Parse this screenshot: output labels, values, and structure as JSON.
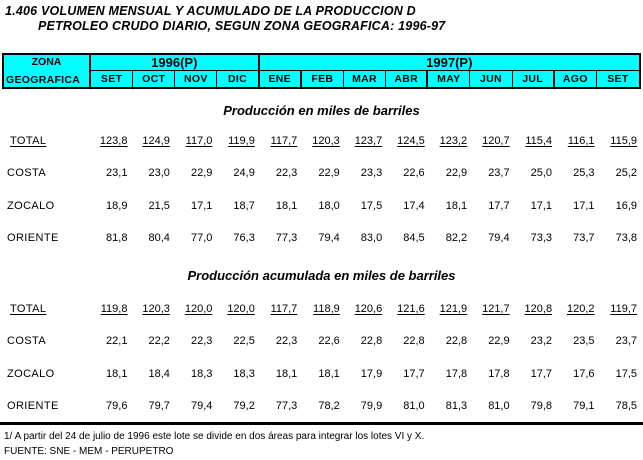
{
  "title": {
    "line1": "1.406 VOLUMEN MENSUAL Y ACUMULADO DE LA PRODUCCION D",
    "line2": "PETROLEO CRUDO DIARIO, SEGUN ZONA GEOGRAFICA: 1996-97"
  },
  "header": {
    "zone_line1": "ZONA",
    "zone_line2": "GEOGRAFICA",
    "year_1996": "1996(P)",
    "year_1997": "1997(P)",
    "months": [
      "SET",
      "OCT",
      "NOV",
      "DIC",
      "ENE",
      "FEB",
      "MAR",
      "ABR",
      "MAY",
      "JUN",
      "JUL",
      "AGO",
      "SET"
    ],
    "header_bg": "#00FFFF",
    "border_color": "#000000"
  },
  "sections": [
    {
      "title": "Producción en miles de barriles",
      "rows": [
        {
          "label": "TOTAL",
          "emphasis": true,
          "values": [
            "123,8",
            "124,9",
            "117,0",
            "119,9",
            "117,7",
            "120,3",
            "123,7",
            "124,5",
            "123,2",
            "120,7",
            "115,4",
            "116,1",
            "115,9"
          ]
        },
        {
          "label": "COSTA",
          "emphasis": false,
          "values": [
            "23,1",
            "23,0",
            "22,9",
            "24,9",
            "22,3",
            "22,9",
            "23,3",
            "22,6",
            "22,9",
            "23,7",
            "25,0",
            "25,3",
            "25,2"
          ]
        },
        {
          "label": "ZOCALO",
          "emphasis": false,
          "values": [
            "18,9",
            "21,5",
            "17,1",
            "18,7",
            "18,1",
            "18,0",
            "17,5",
            "17,4",
            "18,1",
            "17,7",
            "17,1",
            "17,1",
            "16,9"
          ]
        },
        {
          "label": "ORIENTE",
          "emphasis": false,
          "values": [
            "81,8",
            "80,4",
            "77,0",
            "76,3",
            "77,3",
            "79,4",
            "83,0",
            "84,5",
            "82,2",
            "79,4",
            "73,3",
            "73,7",
            "73,8"
          ]
        }
      ]
    },
    {
      "title": "Producción acumulada en miles de barriles",
      "rows": [
        {
          "label": "TOTAL",
          "emphasis": true,
          "values": [
            "119,8",
            "120,3",
            "120,0",
            "120,0",
            "117,7",
            "118,9",
            "120,6",
            "121,6",
            "121,9",
            "121,7",
            "120,8",
            "120,2",
            "119,7"
          ]
        },
        {
          "label": "COSTA",
          "emphasis": false,
          "values": [
            "22,1",
            "22,2",
            "22,3",
            "22,5",
            "22,3",
            "22,6",
            "22,8",
            "22,8",
            "22,8",
            "22,9",
            "23,2",
            "23,5",
            "23,7"
          ]
        },
        {
          "label": "ZOCALO",
          "emphasis": false,
          "values": [
            "18,1",
            "18,4",
            "18,3",
            "18,3",
            "18,1",
            "18,1",
            "17,9",
            "17,7",
            "17,8",
            "17,8",
            "17,7",
            "17,6",
            "17,5"
          ]
        },
        {
          "label": "ORIENTE",
          "emphasis": false,
          "values": [
            "79,6",
            "79,7",
            "79,4",
            "79,2",
            "77,3",
            "78,2",
            "79,9",
            "81,0",
            "81,3",
            "81,0",
            "79,8",
            "79,1",
            "78,5"
          ]
        }
      ]
    }
  ],
  "footer": {
    "footnote": "1/ A partir del 24 de julio de 1996 este lote se divide en dos áreas para integrar los lotes VI y X.",
    "source": "FUENTE: SNE - MEM - PERUPETRO"
  }
}
